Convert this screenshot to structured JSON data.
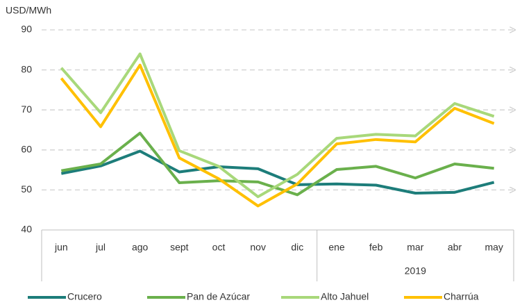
{
  "chart_data": {
    "type": "line",
    "y_axis_label": "USD/MWh",
    "categories": [
      "jun",
      "jul",
      "ago",
      "sept",
      "oct",
      "nov",
      "dic",
      "ene",
      "feb",
      "mar",
      "abr",
      "may"
    ],
    "year_label": "2019",
    "series": [
      {
        "name": "Crucero",
        "color": "#1d7d7a",
        "values": [
          54.1,
          56.0,
          59.7,
          54.5,
          55.8,
          55.3,
          51.3,
          51.5,
          51.2,
          49.2,
          49.4,
          51.9
        ]
      },
      {
        "name": "Pan de Azúcar",
        "color": "#6ab04c",
        "values": [
          54.8,
          56.5,
          64.2,
          51.8,
          52.3,
          52.0,
          48.8,
          55.1,
          55.9,
          53.0,
          56.5,
          55.4
        ]
      },
      {
        "name": "Alto Jahuel",
        "color": "#a8d87a",
        "values": [
          80.5,
          69.3,
          84.0,
          59.8,
          55.9,
          48.3,
          53.9,
          62.9,
          63.9,
          63.5,
          71.6,
          68.4
        ]
      },
      {
        "name": "Charrúa",
        "color": "#ffc000",
        "values": [
          77.9,
          65.8,
          81.2,
          58.0,
          52.8,
          46.0,
          51.5,
          61.5,
          62.6,
          62.0,
          70.4,
          66.6
        ]
      }
    ],
    "ylim": [
      40,
      90
    ],
    "yticks": [
      40,
      50,
      60,
      70,
      80,
      90
    ],
    "grid": true,
    "legend": "bottom"
  }
}
